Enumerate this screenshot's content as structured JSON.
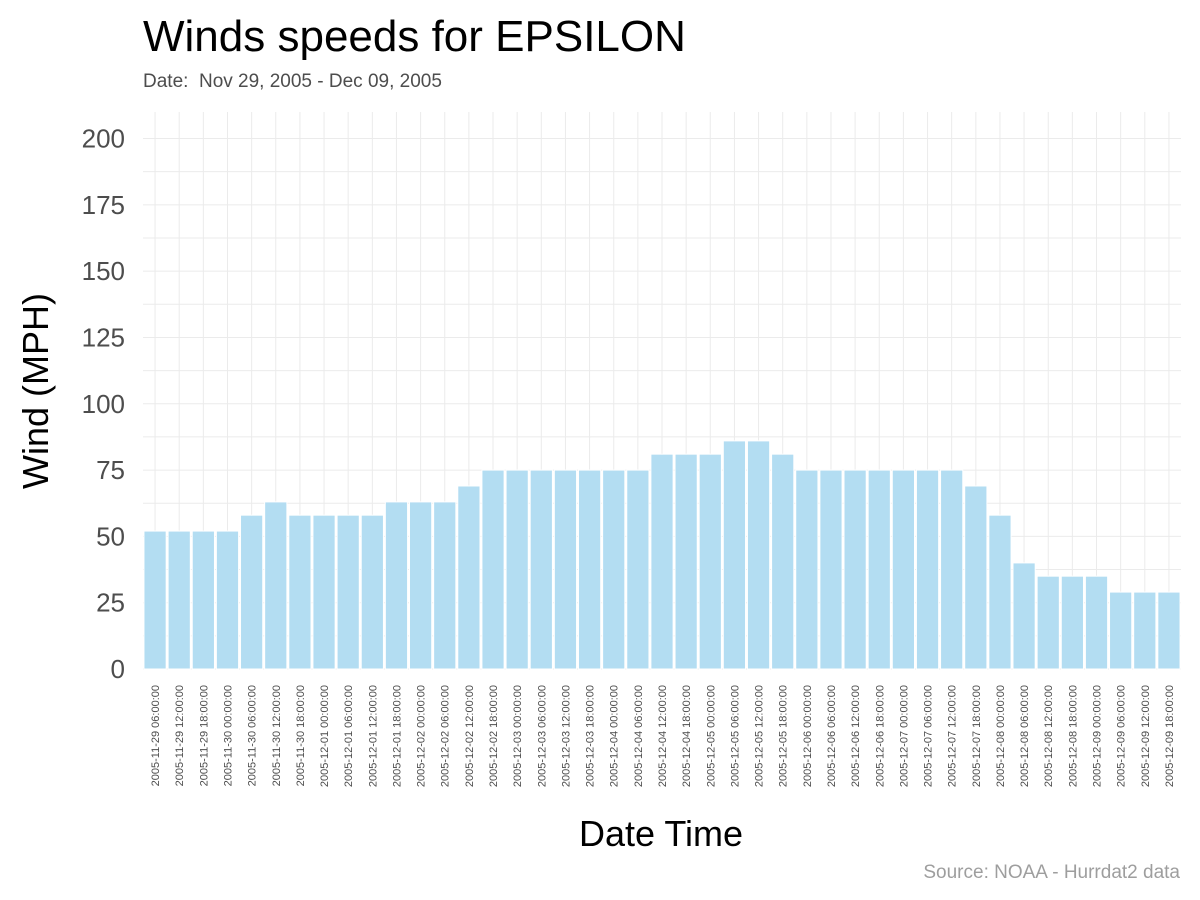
{
  "chart_data": {
    "type": "bar",
    "title": "Winds speeds for EPSILON",
    "subtitle": "Date:  Nov 29, 2005 - Dec 09, 2005",
    "caption": "Source: NOAA - Hurrdat2 data",
    "xlabel": "Date Time",
    "ylabel": "Wind (MPH)",
    "ylim": [
      0,
      210
    ],
    "yticks": [
      0,
      25,
      50,
      75,
      100,
      125,
      150,
      175,
      200
    ],
    "grid": true,
    "bar_color": "#b3ddf2",
    "categories": [
      "2005-11-29 06:00:00",
      "2005-11-29 12:00:00",
      "2005-11-29 18:00:00",
      "2005-11-30 00:00:00",
      "2005-11-30 06:00:00",
      "2005-11-30 12:00:00",
      "2005-11-30 18:00:00",
      "2005-12-01 00:00:00",
      "2005-12-01 06:00:00",
      "2005-12-01 12:00:00",
      "2005-12-01 18:00:00",
      "2005-12-02 00:00:00",
      "2005-12-02 06:00:00",
      "2005-12-02 12:00:00",
      "2005-12-02 18:00:00",
      "2005-12-03 00:00:00",
      "2005-12-03 06:00:00",
      "2005-12-03 12:00:00",
      "2005-12-03 18:00:00",
      "2005-12-04 00:00:00",
      "2005-12-04 06:00:00",
      "2005-12-04 12:00:00",
      "2005-12-04 18:00:00",
      "2005-12-05 00:00:00",
      "2005-12-05 06:00:00",
      "2005-12-05 12:00:00",
      "2005-12-05 18:00:00",
      "2005-12-06 00:00:00",
      "2005-12-06 06:00:00",
      "2005-12-06 12:00:00",
      "2005-12-06 18:00:00",
      "2005-12-07 00:00:00",
      "2005-12-07 06:00:00",
      "2005-12-07 12:00:00",
      "2005-12-07 18:00:00",
      "2005-12-08 00:00:00",
      "2005-12-08 06:00:00",
      "2005-12-08 12:00:00",
      "2005-12-08 18:00:00",
      "2005-12-09 00:00:00",
      "2005-12-09 06:00:00",
      "2005-12-09 12:00:00",
      "2005-12-09 18:00:00"
    ],
    "values": [
      52,
      52,
      52,
      52,
      58,
      63,
      58,
      58,
      58,
      58,
      63,
      63,
      63,
      69,
      75,
      75,
      75,
      75,
      75,
      75,
      75,
      81,
      81,
      81,
      86,
      86,
      81,
      75,
      75,
      75,
      75,
      75,
      75,
      75,
      69,
      58,
      40,
      35,
      35,
      35,
      29,
      29,
      29
    ]
  }
}
